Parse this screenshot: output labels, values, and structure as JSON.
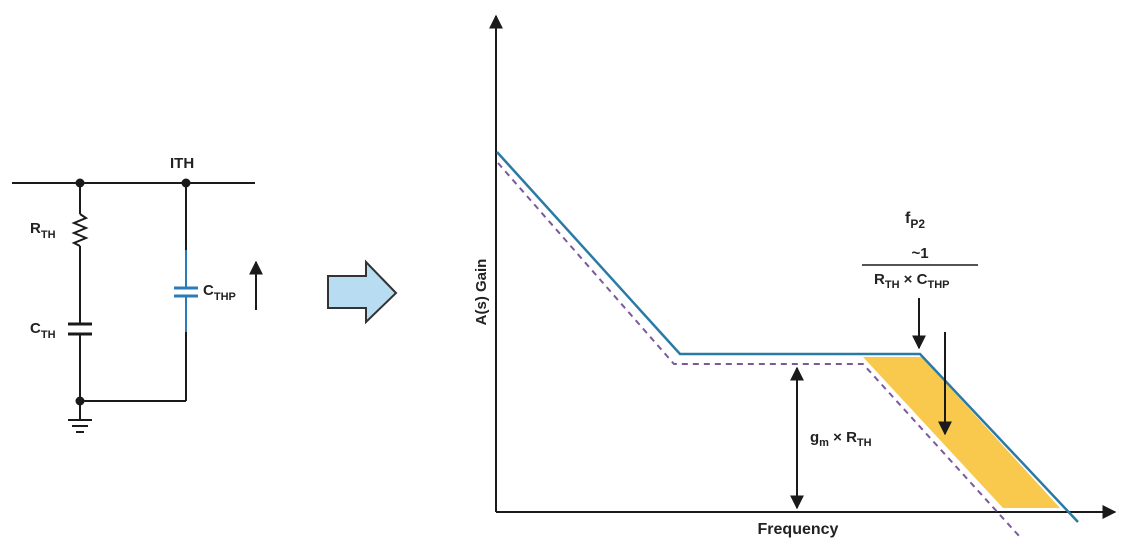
{
  "colors": {
    "wire": "#1a1a1a",
    "capacitor_thp": "#2b7bb9",
    "gain_curve": "#2a7aa6",
    "dashed_curve": "#7b5a9c",
    "shaded_region": "#f9c94d",
    "arrow_fill": "#b8dcf2",
    "arrow_stroke": "#333333"
  },
  "circuit": {
    "node_label": "ITH",
    "resistor_label": {
      "main": "R",
      "sub": "TH"
    },
    "capacitor_label": {
      "main": "C",
      "sub": "TH"
    },
    "capacitor_hp_label": {
      "main": "C",
      "sub": "THP"
    }
  },
  "graph": {
    "y_axis_label": "A(s) Gain",
    "x_axis_label": "Frequency",
    "pole_label": {
      "main": "f",
      "sub": "P2"
    },
    "pole_formula": {
      "numerator": "~1",
      "den_r": "R",
      "den_r_sub": "TH",
      "den_times": " × ",
      "den_c": "C",
      "den_c_sub": "THP"
    },
    "midband_label": {
      "g": "g",
      "g_sub": "m",
      "times": " × ",
      "r": "R",
      "r_sub": "TH"
    }
  },
  "icons": {
    "transform_arrow": "right-block-arrow-icon",
    "ground": "ground-icon",
    "increase_arrow": "up-arrow-icon"
  }
}
